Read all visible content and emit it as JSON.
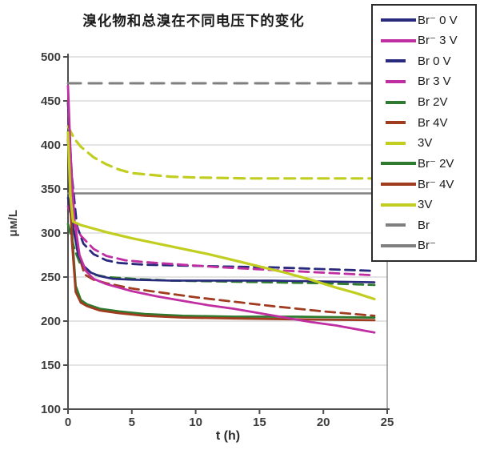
{
  "page": {
    "background": "#ffffff"
  },
  "chart_data": {
    "type": "line",
    "title": "溴化物和总溴在不同电压下的变化",
    "xlabel": "t (h)",
    "ylabel": "μм/L",
    "xlim": [
      0,
      25
    ],
    "ylim": [
      100,
      500
    ],
    "x_ticks": [
      0,
      5,
      10,
      15,
      20,
      25
    ],
    "y_ticks": [
      100,
      150,
      200,
      250,
      300,
      350,
      400,
      450,
      500
    ],
    "grid": true,
    "legend_position": "top-right-overlay",
    "axis_color": "#4d4d4d",
    "right_border_color": "#8a8a8a",
    "grid_color": "#c9c9c9",
    "tick_label_color": "#3d3d3d",
    "draw_order": [
      10,
      11,
      6,
      2,
      3,
      4,
      5,
      0,
      7,
      8,
      1,
      9
    ],
    "series": [
      {
        "name": "Br⁻ 0 V",
        "color": "#29297d",
        "line_style": "solid",
        "dash": "",
        "width": 2.6,
        "points": [
          [
            0,
            340
          ],
          [
            0.2,
            322
          ],
          [
            0.5,
            298
          ],
          [
            0.8,
            275
          ],
          [
            1.2,
            263
          ],
          [
            1.8,
            255
          ],
          [
            2.5,
            251
          ],
          [
            3.5,
            248
          ],
          [
            5,
            247
          ],
          [
            8,
            246
          ],
          [
            12,
            246
          ],
          [
            16,
            246
          ],
          [
            20,
            245
          ],
          [
            24,
            244
          ]
        ]
      },
      {
        "name": "Br⁻ 3 V",
        "color": "#c02fa2",
        "line_style": "solid",
        "dash": "",
        "width": 2.8,
        "points": [
          [
            0,
            467
          ],
          [
            0.2,
            390
          ],
          [
            0.5,
            315
          ],
          [
            0.9,
            275
          ],
          [
            1.4,
            257
          ],
          [
            2,
            248
          ],
          [
            3,
            242
          ],
          [
            4,
            238
          ],
          [
            5,
            234
          ],
          [
            7,
            228
          ],
          [
            9,
            223
          ],
          [
            11,
            218
          ],
          [
            13,
            214
          ],
          [
            15,
            209
          ],
          [
            17,
            204
          ],
          [
            19,
            199
          ],
          [
            21,
            195
          ],
          [
            22.5,
            191
          ],
          [
            24,
            187
          ]
        ]
      },
      {
        "name": "Br 0 V",
        "color": "#29297d",
        "line_style": "dashed",
        "dash": "12 7",
        "width": 2.8,
        "points": [
          [
            0,
            448
          ],
          [
            0.3,
            365
          ],
          [
            0.7,
            308
          ],
          [
            1.2,
            288
          ],
          [
            2,
            276
          ],
          [
            3,
            269
          ],
          [
            4,
            266
          ],
          [
            6,
            264
          ],
          [
            9,
            263
          ],
          [
            12,
            262
          ],
          [
            16,
            261
          ],
          [
            20,
            259
          ],
          [
            24,
            257
          ]
        ]
      },
      {
        "name": "Br 3 V",
        "color": "#c02fa2",
        "line_style": "dashed",
        "dash": "12 7",
        "width": 2.8,
        "points": [
          [
            0,
            330
          ],
          [
            0.5,
            312
          ],
          [
            1,
            297
          ],
          [
            2,
            282
          ],
          [
            3,
            274
          ],
          [
            4.5,
            269
          ],
          [
            6,
            267
          ],
          [
            9,
            264
          ],
          [
            12,
            261
          ],
          [
            16,
            258
          ],
          [
            20,
            255
          ],
          [
            24,
            252
          ]
        ]
      },
      {
        "name": "Br 2V",
        "color": "#2e7a2e",
        "line_style": "dashed",
        "dash": "12 7",
        "width": 2.8,
        "points": [
          [
            0,
            310
          ],
          [
            0.5,
            282
          ],
          [
            1,
            263
          ],
          [
            2,
            253
          ],
          [
            3,
            250
          ],
          [
            5,
            248
          ],
          [
            8,
            246
          ],
          [
            12,
            245
          ],
          [
            16,
            244
          ],
          [
            20,
            243
          ],
          [
            24,
            241
          ]
        ]
      },
      {
        "name": "Br 4V",
        "color": "#a03c20",
        "line_style": "dashed",
        "dash": "12 7",
        "width": 2.8,
        "points": [
          [
            0,
            405
          ],
          [
            0.3,
            335
          ],
          [
            0.7,
            282
          ],
          [
            1.3,
            253
          ],
          [
            2,
            247
          ],
          [
            3,
            243
          ],
          [
            5,
            237
          ],
          [
            7,
            233
          ],
          [
            10,
            227
          ],
          [
            13,
            222
          ],
          [
            16,
            217
          ],
          [
            20,
            211
          ],
          [
            24,
            206
          ]
        ]
      },
      {
        "name": "3V",
        "color": "#c1ce20",
        "line_style": "dashed",
        "dash": "13 8",
        "width": 3.2,
        "points": [
          [
            0,
            421
          ],
          [
            0.5,
            407
          ],
          [
            1,
            398
          ],
          [
            2,
            386
          ],
          [
            3,
            378
          ],
          [
            4,
            372
          ],
          [
            5,
            368
          ],
          [
            6.5,
            366
          ],
          [
            8,
            364
          ],
          [
            10,
            363
          ],
          [
            14,
            362
          ],
          [
            18,
            362
          ],
          [
            24,
            362
          ]
        ]
      },
      {
        "name": "Br⁻ 2V",
        "color": "#2e7a2e",
        "line_style": "solid",
        "dash": "",
        "width": 2.8,
        "points": [
          [
            0,
            415
          ],
          [
            0.3,
            302
          ],
          [
            0.6,
            240
          ],
          [
            1,
            224
          ],
          [
            1.5,
            219
          ],
          [
            2.5,
            214
          ],
          [
            4,
            211
          ],
          [
            6,
            208
          ],
          [
            9,
            206
          ],
          [
            13,
            205
          ],
          [
            18,
            205
          ],
          [
            24,
            204
          ]
        ]
      },
      {
        "name": "Br⁻ 4V",
        "color": "#a03c20",
        "line_style": "solid",
        "dash": "",
        "width": 2.8,
        "points": [
          [
            0,
            410
          ],
          [
            0.3,
            292
          ],
          [
            0.6,
            233
          ],
          [
            1,
            221
          ],
          [
            1.5,
            217
          ],
          [
            2.5,
            212
          ],
          [
            4,
            209
          ],
          [
            6,
            206
          ],
          [
            9,
            204
          ],
          [
            13,
            203
          ],
          [
            18,
            202
          ],
          [
            24,
            201
          ]
        ]
      },
      {
        "name": "3V",
        "color": "#c1ce20",
        "line_style": "solid",
        "dash": "",
        "width": 3.2,
        "points": [
          [
            0,
            414
          ],
          [
            0.2,
            340
          ],
          [
            0.4,
            313
          ],
          [
            1,
            309
          ],
          [
            2,
            305
          ],
          [
            3,
            301
          ],
          [
            5,
            294
          ],
          [
            7,
            288
          ],
          [
            9,
            282
          ],
          [
            11,
            276
          ],
          [
            13,
            269
          ],
          [
            15,
            262
          ],
          [
            17,
            255
          ],
          [
            19,
            247
          ],
          [
            21,
            238
          ],
          [
            22.5,
            232
          ],
          [
            24,
            225
          ]
        ]
      },
      {
        "name": "Br",
        "color": "#7f7f7f",
        "line_style": "dashed",
        "dash": "16 10",
        "width": 3,
        "points": [
          [
            0,
            470
          ],
          [
            24.2,
            470
          ]
        ]
      },
      {
        "name": "Br⁻",
        "color": "#7f7f7f",
        "line_style": "solid",
        "dash": "",
        "width": 2.4,
        "points": [
          [
            0,
            345
          ],
          [
            24.2,
            345
          ]
        ]
      }
    ]
  }
}
